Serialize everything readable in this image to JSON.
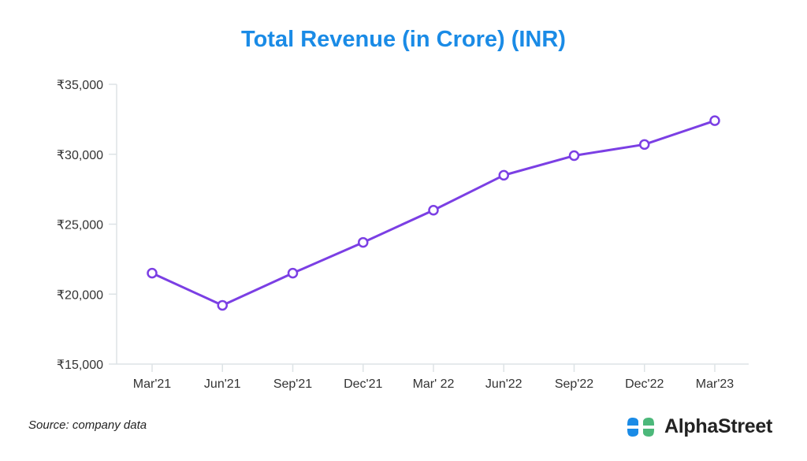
{
  "chart_data": {
    "type": "line",
    "title": "Total Revenue (in Crore) (INR)",
    "xlabel": "",
    "ylabel": "",
    "categories": [
      "Mar'21",
      "Jun'21",
      "Sep'21",
      "Dec'21",
      "Mar' 22",
      "Jun'22",
      "Sep'22",
      "Dec'22",
      "Mar'23"
    ],
    "series": [
      {
        "name": "Total Revenue",
        "values": [
          21500,
          19200,
          21500,
          23700,
          26000,
          28500,
          29900,
          30700,
          32400
        ],
        "color": "#7b3fe4"
      }
    ],
    "ylim": [
      15000,
      35000
    ],
    "yticks": [
      15000,
      20000,
      25000,
      30000,
      35000
    ],
    "ytick_labels": [
      "₹15,000",
      "₹20,000",
      "₹25,000",
      "₹30,000",
      "₹35,000"
    ],
    "grid": false,
    "legend": "none"
  },
  "footer": {
    "source": "Source: company data",
    "brand": "AlphaStreet"
  },
  "colors": {
    "title": "#1a8be6",
    "logo_blue": "#1a8be6",
    "logo_green": "#4cb87a"
  }
}
